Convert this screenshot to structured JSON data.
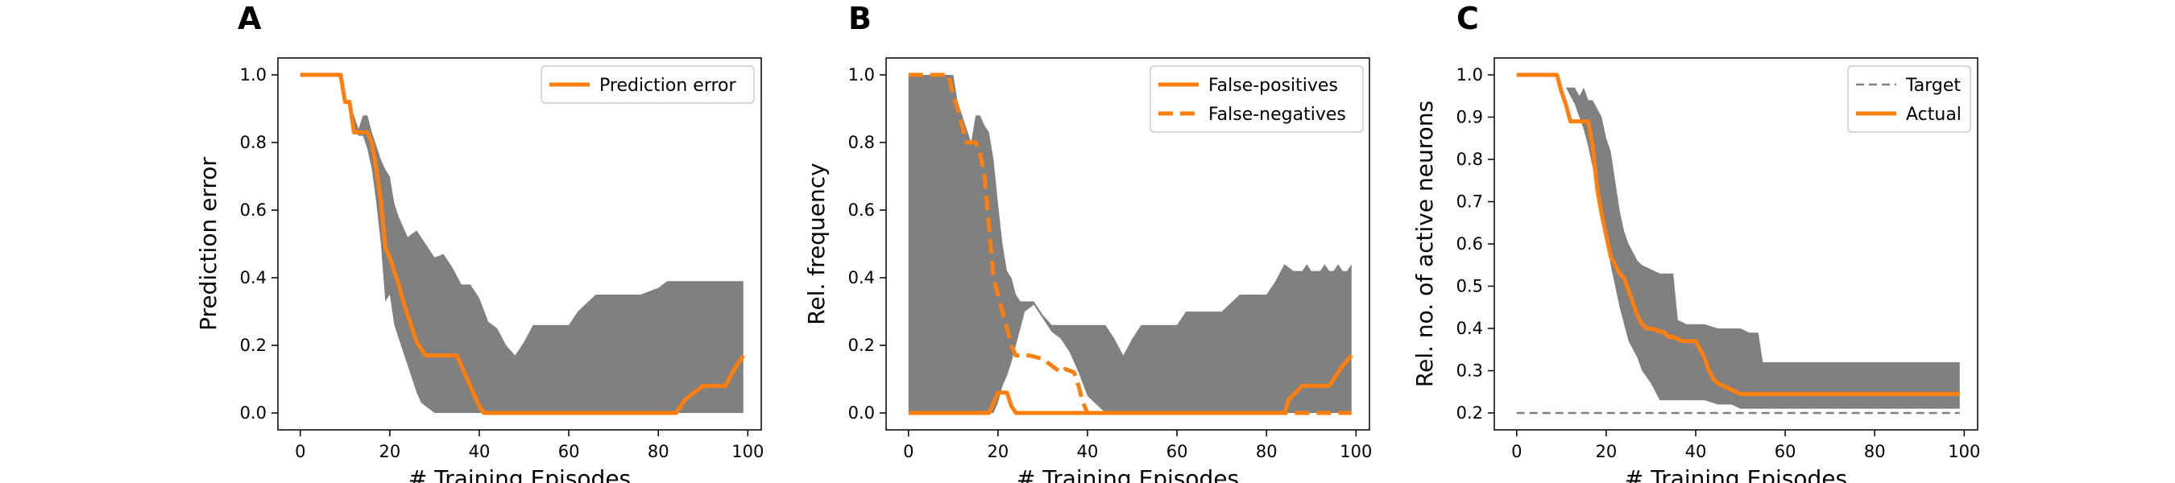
{
  "chart_data": [
    {
      "type": "line",
      "panel_label": "A",
      "xlabel": "# Training Episodes",
      "ylabel": "Prediction error",
      "xlim": [
        -5,
        103
      ],
      "ylim": [
        -0.05,
        1.05
      ],
      "xticks": [
        0,
        20,
        40,
        60,
        80,
        100
      ],
      "yticks": [
        0.0,
        0.2,
        0.4,
        0.6,
        0.8,
        1.0
      ],
      "ytick_labels": [
        "0.0",
        "0.2",
        "0.4",
        "0.6",
        "0.8",
        "1.0"
      ],
      "legend_position": "top-right",
      "band_color": "#808080",
      "band": {
        "x": [
          0,
          10,
          11,
          12,
          13,
          14,
          15,
          16,
          17,
          18,
          19,
          20,
          21,
          22,
          24,
          26,
          27,
          30,
          32,
          34,
          36,
          38,
          40,
          42,
          44,
          46,
          48,
          50,
          52,
          56,
          60,
          62,
          66,
          70,
          72,
          76,
          80,
          82,
          84,
          86,
          88,
          90,
          95,
          99
        ],
        "upper": [
          1.0,
          1.0,
          0.92,
          0.88,
          0.84,
          0.88,
          0.88,
          0.83,
          0.79,
          0.75,
          0.72,
          0.7,
          0.62,
          0.58,
          0.52,
          0.54,
          0.52,
          0.46,
          0.47,
          0.43,
          0.38,
          0.38,
          0.34,
          0.27,
          0.25,
          0.2,
          0.17,
          0.21,
          0.26,
          0.26,
          0.26,
          0.3,
          0.35,
          0.35,
          0.35,
          0.35,
          0.37,
          0.39,
          0.39,
          0.39,
          0.39,
          0.39,
          0.39,
          0.39
        ],
        "lower": [
          1.0,
          1.0,
          0.92,
          0.84,
          0.82,
          0.82,
          0.78,
          0.72,
          0.62,
          0.5,
          0.33,
          0.35,
          0.26,
          0.22,
          0.14,
          0.06,
          0.03,
          0.0,
          0.0,
          0.0,
          0.0,
          0.0,
          0.0,
          0.0,
          0.0,
          0.0,
          0.0,
          0.0,
          0.0,
          0.0,
          0.0,
          0.0,
          0.0,
          0.0,
          0.0,
          0.0,
          0.0,
          0.0,
          0.0,
          0.0,
          0.0,
          0.0,
          0.0,
          0.0
        ]
      },
      "series": [
        {
          "name": "Prediction error",
          "style": "solid",
          "color": "#ff7f0e",
          "x": [
            0,
            9,
            10,
            11,
            12,
            13,
            15,
            16,
            17,
            18,
            19,
            20,
            21,
            22,
            23,
            24,
            25,
            26,
            27,
            28,
            30,
            35,
            38,
            40,
            41,
            84,
            86,
            90,
            95,
            97,
            99
          ],
          "y": [
            1.0,
            1.0,
            0.92,
            0.92,
            0.83,
            0.83,
            0.83,
            0.8,
            0.72,
            0.63,
            0.49,
            0.46,
            0.42,
            0.38,
            0.33,
            0.29,
            0.25,
            0.21,
            0.19,
            0.17,
            0.17,
            0.17,
            0.08,
            0.02,
            0.0,
            0.0,
            0.04,
            0.08,
            0.08,
            0.13,
            0.17
          ]
        }
      ]
    },
    {
      "type": "line",
      "panel_label": "B",
      "xlabel": "# Training Episodes",
      "ylabel": "Rel. frequency",
      "xlim": [
        -5,
        103
      ],
      "ylim": [
        -0.05,
        1.05
      ],
      "xticks": [
        0,
        20,
        40,
        60,
        80,
        100
      ],
      "yticks": [
        0.0,
        0.2,
        0.4,
        0.6,
        0.8,
        1.0
      ],
      "ytick_labels": [
        "0.0",
        "0.2",
        "0.4",
        "0.6",
        "0.8",
        "1.0"
      ],
      "legend_position": "top-right",
      "band_color": "#808080",
      "band": {
        "x": [
          0,
          10,
          11,
          12,
          13,
          14,
          15,
          16,
          17,
          18,
          19,
          20,
          21,
          22,
          23,
          24,
          25,
          26,
          28,
          30,
          32,
          34,
          36,
          38,
          40,
          44,
          46,
          48,
          50,
          52,
          56,
          60,
          62,
          66,
          70,
          74,
          76,
          78,
          80,
          82,
          84,
          86,
          88,
          89,
          90,
          92,
          93,
          94,
          95,
          96,
          97,
          98,
          99
        ],
        "upper": [
          1.0,
          1.0,
          0.92,
          0.88,
          0.84,
          0.8,
          0.88,
          0.88,
          0.85,
          0.83,
          0.75,
          0.62,
          0.5,
          0.42,
          0.4,
          0.35,
          0.33,
          0.33,
          0.33,
          0.29,
          0.26,
          0.26,
          0.26,
          0.26,
          0.26,
          0.26,
          0.22,
          0.17,
          0.22,
          0.26,
          0.26,
          0.26,
          0.3,
          0.3,
          0.3,
          0.35,
          0.35,
          0.35,
          0.35,
          0.39,
          0.44,
          0.42,
          0.42,
          0.44,
          0.42,
          0.42,
          0.44,
          0.42,
          0.42,
          0.44,
          0.42,
          0.42,
          0.44
        ],
        "lower": [
          0.0,
          0.0,
          0.0,
          0.0,
          0.0,
          0.0,
          0.0,
          0.0,
          0.0,
          0.0,
          0.0,
          0.03,
          0.08,
          0.11,
          0.15,
          0.2,
          0.25,
          0.3,
          0.32,
          0.28,
          0.24,
          0.22,
          0.18,
          0.12,
          0.05,
          0.0,
          0.0,
          0.0,
          0.0,
          0.0,
          0.0,
          0.0,
          0.0,
          0.0,
          0.0,
          0.0,
          0.0,
          0.0,
          0.0,
          0.0,
          0.0,
          0.0,
          0.0,
          0.0,
          0.0,
          0.0,
          0.0,
          0.0,
          0.0,
          0.0,
          0.0,
          0.0,
          0.0
        ]
      },
      "series": [
        {
          "name": "False-positives",
          "style": "solid",
          "color": "#ff7f0e",
          "x": [
            0,
            18,
            19,
            20,
            22,
            23,
            24,
            84,
            85,
            88,
            90,
            94,
            95,
            97,
            99
          ],
          "y": [
            0.0,
            0.0,
            0.03,
            0.06,
            0.06,
            0.02,
            0.0,
            0.0,
            0.04,
            0.08,
            0.08,
            0.08,
            0.1,
            0.14,
            0.17
          ]
        },
        {
          "name": "False-negatives",
          "style": "dashed",
          "color": "#ff7f0e",
          "x": [
            0,
            9,
            10,
            11,
            12,
            13,
            15,
            16,
            17,
            18,
            19,
            20,
            21,
            22,
            23,
            24,
            25,
            26,
            27,
            30,
            34,
            35,
            37,
            38,
            39,
            40,
            86,
            88,
            90,
            94,
            95,
            97,
            99
          ],
          "y": [
            1.0,
            1.0,
            0.94,
            0.9,
            0.85,
            0.8,
            0.8,
            0.77,
            0.7,
            0.55,
            0.4,
            0.35,
            0.3,
            0.25,
            0.2,
            0.17,
            0.17,
            0.17,
            0.17,
            0.16,
            0.12,
            0.13,
            0.12,
            0.08,
            0.03,
            0.0,
            0.0,
            0.0,
            0.0,
            0.0,
            0.0,
            0.0,
            0.0
          ]
        }
      ]
    },
    {
      "type": "line",
      "panel_label": "C",
      "xlabel": "# Training Episodes",
      "ylabel": "Rel. no. of active neurons",
      "xlim": [
        -5,
        103
      ],
      "ylim": [
        0.16,
        1.04
      ],
      "xticks": [
        0,
        20,
        40,
        60,
        80,
        100
      ],
      "yticks": [
        0.2,
        0.3,
        0.4,
        0.5,
        0.6,
        0.7,
        0.8,
        0.9,
        1.0
      ],
      "ytick_labels": [
        "0.2",
        "0.3",
        "0.4",
        "0.5",
        "0.6",
        "0.7",
        "0.8",
        "0.9",
        "1.0"
      ],
      "legend_position": "top-right",
      "band_color": "#808080",
      "band": {
        "x": [
          0,
          9,
          10,
          11,
          12,
          13,
          14,
          15,
          16,
          17,
          18,
          19,
          20,
          21,
          22,
          23,
          24,
          25,
          26,
          27,
          28,
          30,
          32,
          34,
          35,
          36,
          38,
          40,
          42,
          45,
          48,
          50,
          52,
          54,
          55,
          56,
          60,
          70,
          80,
          90,
          99
        ],
        "upper": [
          1.0,
          1.0,
          0.99,
          0.97,
          0.97,
          0.97,
          0.95,
          0.97,
          0.94,
          0.94,
          0.92,
          0.9,
          0.85,
          0.82,
          0.75,
          0.68,
          0.63,
          0.6,
          0.58,
          0.56,
          0.55,
          0.54,
          0.53,
          0.53,
          0.53,
          0.42,
          0.41,
          0.41,
          0.41,
          0.4,
          0.4,
          0.4,
          0.39,
          0.39,
          0.32,
          0.32,
          0.32,
          0.32,
          0.32,
          0.32,
          0.32
        ],
        "lower": [
          1.0,
          1.0,
          0.99,
          0.97,
          0.95,
          0.93,
          0.9,
          0.87,
          0.83,
          0.78,
          0.72,
          0.67,
          0.61,
          0.55,
          0.5,
          0.45,
          0.41,
          0.37,
          0.35,
          0.33,
          0.3,
          0.27,
          0.23,
          0.23,
          0.23,
          0.23,
          0.23,
          0.23,
          0.23,
          0.22,
          0.22,
          0.21,
          0.21,
          0.21,
          0.21,
          0.21,
          0.21,
          0.21,
          0.21,
          0.21,
          0.21
        ]
      },
      "series": [
        {
          "name": "Target",
          "style": "dashed",
          "color": "#808080",
          "x": [
            0,
            99
          ],
          "y": [
            0.2,
            0.2
          ]
        },
        {
          "name": "Actual",
          "style": "solid",
          "color": "#ff7f0e",
          "x": [
            0,
            9,
            10,
            11,
            12,
            13,
            16,
            17,
            18,
            19,
            20,
            21,
            22,
            23,
            24,
            25,
            26,
            27,
            28,
            29,
            30,
            33,
            34,
            35,
            37,
            38,
            40,
            41,
            42,
            43,
            44,
            45,
            47,
            48,
            49,
            50,
            60,
            70,
            80,
            90,
            99
          ],
          "y": [
            1.0,
            1.0,
            0.96,
            0.93,
            0.89,
            0.89,
            0.89,
            0.83,
            0.73,
            0.67,
            0.62,
            0.57,
            0.55,
            0.53,
            0.52,
            0.49,
            0.46,
            0.43,
            0.41,
            0.4,
            0.4,
            0.39,
            0.38,
            0.38,
            0.37,
            0.37,
            0.37,
            0.35,
            0.33,
            0.3,
            0.28,
            0.27,
            0.26,
            0.255,
            0.25,
            0.245,
            0.245,
            0.245,
            0.245,
            0.245,
            0.245
          ]
        }
      ]
    }
  ]
}
